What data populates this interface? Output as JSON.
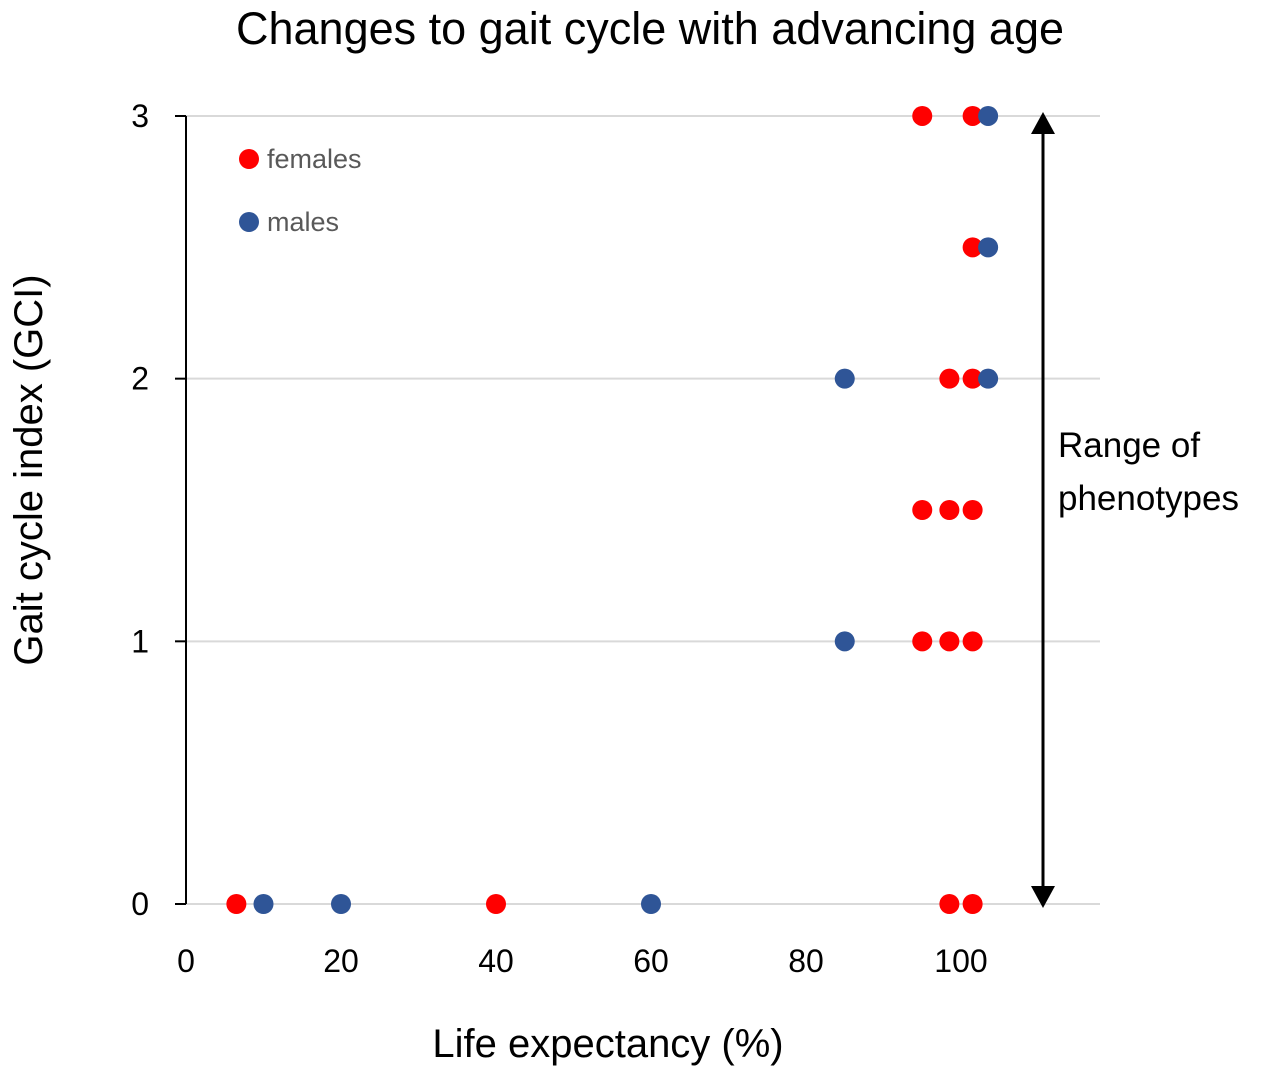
{
  "chart_data": {
    "type": "scatter",
    "title": "Changes to gait cycle with advancing age",
    "xlabel": "Life expectancy (%)",
    "ylabel": "Gait cycle index (GCI)",
    "xlim": [
      0,
      115
    ],
    "ylim": [
      0,
      3
    ],
    "xticks": [
      0,
      20,
      40,
      60,
      80,
      100
    ],
    "yticks": [
      0,
      1,
      2,
      3
    ],
    "grid": "horizontal",
    "legend": "top-left",
    "series": [
      {
        "name": "females",
        "color": "#ff0000",
        "points": [
          {
            "x": 6.5,
            "y": 0
          },
          {
            "x": 40,
            "y": 0
          },
          {
            "x": 98.5,
            "y": 0
          },
          {
            "x": 101.5,
            "y": 0
          },
          {
            "x": 95,
            "y": 1
          },
          {
            "x": 98.5,
            "y": 1
          },
          {
            "x": 101.5,
            "y": 1
          },
          {
            "x": 95,
            "y": 1.5
          },
          {
            "x": 98.5,
            "y": 1.5
          },
          {
            "x": 101.5,
            "y": 1.5
          },
          {
            "x": 98.5,
            "y": 2
          },
          {
            "x": 101.5,
            "y": 2
          },
          {
            "x": 101.5,
            "y": 2.5
          },
          {
            "x": 95,
            "y": 3
          },
          {
            "x": 101.5,
            "y": 3
          }
        ]
      },
      {
        "name": "males",
        "color": "#2f5597",
        "points": [
          {
            "x": 10,
            "y": 0
          },
          {
            "x": 20,
            "y": 0
          },
          {
            "x": 60,
            "y": 0
          },
          {
            "x": 85,
            "y": 1
          },
          {
            "x": 85,
            "y": 2
          },
          {
            "x": 103.5,
            "y": 2
          },
          {
            "x": 103.5,
            "y": 2.5
          },
          {
            "x": 103.5,
            "y": 3
          }
        ]
      }
    ],
    "annotations": [
      {
        "text_lines": [
          "Range of",
          "phenotypes"
        ],
        "arrow": "double-headed vertical",
        "y_from": 0,
        "y_to": 3
      }
    ]
  }
}
